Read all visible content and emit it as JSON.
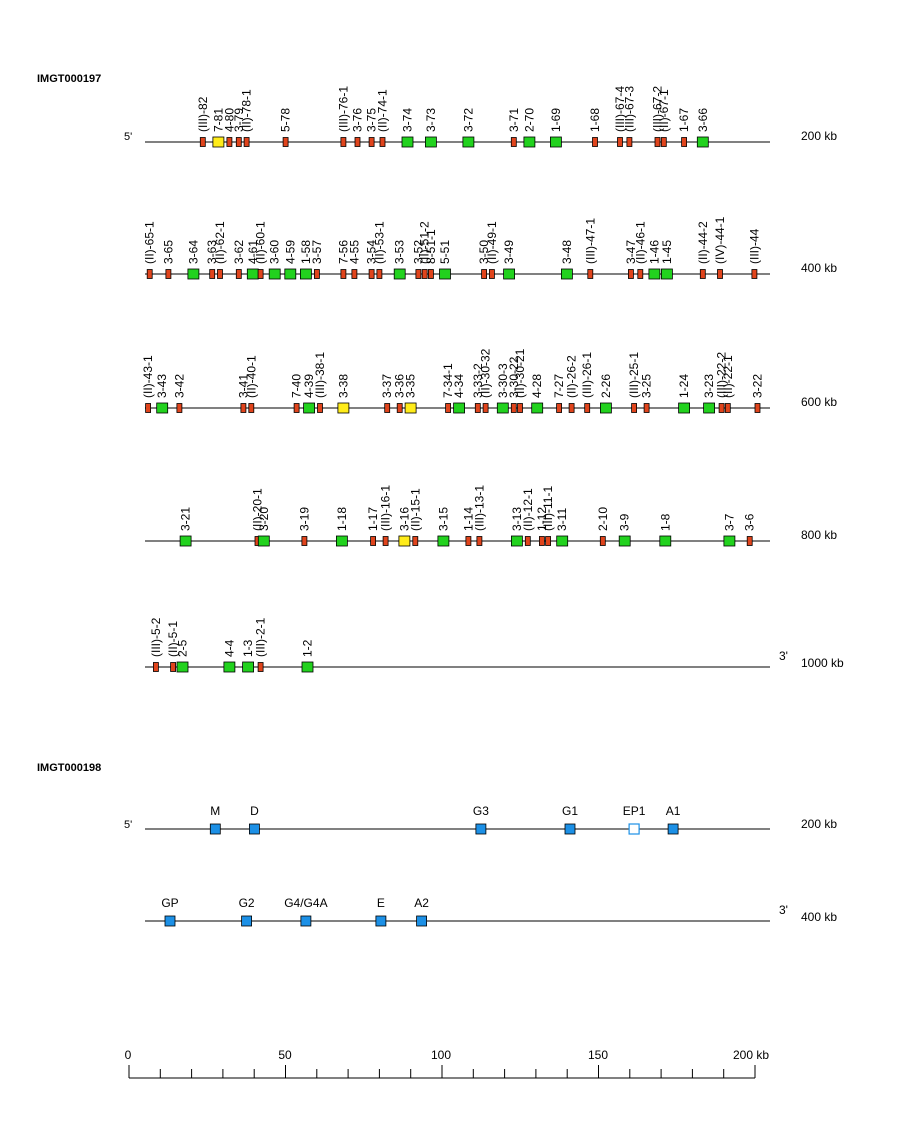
{
  "colors": {
    "line": "#000000",
    "red": "#e0441c",
    "green": "#22d21e",
    "yellow": "#ffec1a",
    "blue": "#1c90e6",
    "hollow_stroke": "#1c90e6",
    "text": "#000000"
  },
  "locus1": {
    "id": "IMGT000197",
    "rows": [
      {
        "left_label": "5'",
        "right_label": "200 kb",
        "genes": [
          {
            "name": "(III)-82",
            "kb": 18.5,
            "type": "red"
          },
          {
            "name": "7-81",
            "kb": 23.5,
            "type": "yellow"
          },
          {
            "name": "4-80",
            "kb": 27.0,
            "type": "red"
          },
          {
            "name": "3-79",
            "kb": 30.0,
            "type": "red"
          },
          {
            "name": "(II)-78-1",
            "kb": 32.5,
            "type": "red"
          },
          {
            "name": "5-78",
            "kb": 45.0,
            "type": "red"
          },
          {
            "name": "(III)-76-1",
            "kb": 63.5,
            "type": "red"
          },
          {
            "name": "3-76",
            "kb": 68.0,
            "type": "red"
          },
          {
            "name": "3-75",
            "kb": 72.5,
            "type": "red"
          },
          {
            "name": "(II)-74-1",
            "kb": 76.0,
            "type": "red"
          },
          {
            "name": "3-74",
            "kb": 84.0,
            "type": "green"
          },
          {
            "name": "3-73",
            "kb": 91.5,
            "type": "green"
          },
          {
            "name": "3-72",
            "kb": 103.5,
            "type": "green"
          },
          {
            "name": "3-71",
            "kb": 118.0,
            "type": "red"
          },
          {
            "name": "2-70",
            "kb": 123.0,
            "type": "green"
          },
          {
            "name": "1-69",
            "kb": 131.5,
            "type": "green"
          },
          {
            "name": "1-68",
            "kb": 144.0,
            "type": "red"
          },
          {
            "name": "(III)-67-4",
            "kb": 152.0,
            "type": "red"
          },
          {
            "name": "(III)-67-3",
            "kb": 155.0,
            "type": "red"
          },
          {
            "name": "(III)-67-2",
            "kb": 164.0,
            "type": "red"
          },
          {
            "name": "(II)-67-1",
            "kb": 166.0,
            "type": "red"
          },
          {
            "name": "1-67",
            "kb": 172.5,
            "type": "red"
          },
          {
            "name": "3-66",
            "kb": 178.5,
            "type": "green"
          }
        ]
      },
      {
        "left_label": "",
        "right_label": "400 kb",
        "genes": [
          {
            "name": "(II)-65-1",
            "kb": 1.5,
            "type": "red"
          },
          {
            "name": "3-65",
            "kb": 7.5,
            "type": "red"
          },
          {
            "name": "3-64",
            "kb": 15.5,
            "type": "green"
          },
          {
            "name": "3-63",
            "kb": 21.5,
            "type": "red"
          },
          {
            "name": "(II)-62-1",
            "kb": 24.0,
            "type": "red"
          },
          {
            "name": "3-62",
            "kb": 30.0,
            "type": "red"
          },
          {
            "name": "4-61",
            "kb": 34.5,
            "type": "green"
          },
          {
            "name": "(II)-60-1",
            "kb": 37.0,
            "type": "red"
          },
          {
            "name": "3-60",
            "kb": 41.5,
            "type": "green"
          },
          {
            "name": "4-59",
            "kb": 46.5,
            "type": "green"
          },
          {
            "name": "1-58",
            "kb": 51.5,
            "type": "green"
          },
          {
            "name": "3-57",
            "kb": 55.0,
            "type": "red"
          },
          {
            "name": "7-56",
            "kb": 63.5,
            "type": "red"
          },
          {
            "name": "4-55",
            "kb": 67.0,
            "type": "red"
          },
          {
            "name": "3-54",
            "kb": 72.5,
            "type": "red"
          },
          {
            "name": "(II)-53-1",
            "kb": 75.0,
            "type": "red"
          },
          {
            "name": "3-53",
            "kb": 81.5,
            "type": "green"
          },
          {
            "name": "3-52",
            "kb": 87.5,
            "type": "red"
          },
          {
            "name": "(II)-51-2",
            "kb": 89.5,
            "type": "red"
          },
          {
            "name": "8-51-1",
            "kb": 91.5,
            "type": "red"
          },
          {
            "name": "5-51",
            "kb": 96.0,
            "type": "green"
          },
          {
            "name": "3-50",
            "kb": 108.5,
            "type": "red"
          },
          {
            "name": "(II)-49-1",
            "kb": 111.0,
            "type": "red"
          },
          {
            "name": "3-49",
            "kb": 116.5,
            "type": "green"
          },
          {
            "name": "3-48",
            "kb": 135.0,
            "type": "green"
          },
          {
            "name": "(III)-47-1",
            "kb": 142.5,
            "type": "red"
          },
          {
            "name": "3-47",
            "kb": 155.5,
            "type": "red"
          },
          {
            "name": "(II)-46-1",
            "kb": 158.5,
            "type": "red"
          },
          {
            "name": "1-46",
            "kb": 163.0,
            "type": "green"
          },
          {
            "name": "1-45",
            "kb": 167.0,
            "type": "green"
          },
          {
            "name": "(II)-44-2",
            "kb": 178.5,
            "type": "red"
          },
          {
            "name": "(IV)-44-1",
            "kb": 184.0,
            "type": "red"
          },
          {
            "name": "(III)-44",
            "kb": 195.0,
            "type": "red"
          }
        ]
      },
      {
        "left_label": "",
        "right_label": "600 kb",
        "genes": [
          {
            "name": "(II)-43-1",
            "kb": 1.0,
            "type": "red"
          },
          {
            "name": "3-43",
            "kb": 5.5,
            "type": "green"
          },
          {
            "name": "3-42",
            "kb": 11.0,
            "type": "red"
          },
          {
            "name": "3-41",
            "kb": 31.5,
            "type": "red"
          },
          {
            "name": "(II)-40-1",
            "kb": 34.0,
            "type": "red"
          },
          {
            "name": "7-40",
            "kb": 48.5,
            "type": "red"
          },
          {
            "name": "4-39",
            "kb": 52.5,
            "type": "green"
          },
          {
            "name": "(III)-38-1",
            "kb": 56.0,
            "type": "red"
          },
          {
            "name": "3-38",
            "kb": 63.5,
            "type": "yellow"
          },
          {
            "name": "3-37",
            "kb": 77.5,
            "type": "red"
          },
          {
            "name": "3-36",
            "kb": 81.5,
            "type": "red"
          },
          {
            "name": "3-35",
            "kb": 85.0,
            "type": "yellow"
          },
          {
            "name": "7-34-1",
            "kb": 97.0,
            "type": "red"
          },
          {
            "name": "4-34",
            "kb": 100.5,
            "type": "green"
          },
          {
            "name": "3-33-2",
            "kb": 106.5,
            "type": "red"
          },
          {
            "name": "(II)-30-32",
            "kb": 109.0,
            "type": "red"
          },
          {
            "name": "3-30-3",
            "kb": 114.5,
            "type": "green"
          },
          {
            "name": "3-30-22",
            "kb": 118.0,
            "type": "red"
          },
          {
            "name": "(II)-30-21",
            "kb": 120.0,
            "type": "red"
          },
          {
            "name": "4-28",
            "kb": 125.5,
            "type": "green"
          },
          {
            "name": "7-27",
            "kb": 132.5,
            "type": "red"
          },
          {
            "name": "(II)-26-2",
            "kb": 136.5,
            "type": "red"
          },
          {
            "name": "(III)-26-1",
            "kb": 141.5,
            "type": "red"
          },
          {
            "name": "2-26",
            "kb": 147.5,
            "type": "green"
          },
          {
            "name": "(III)-25-1",
            "kb": 156.5,
            "type": "red"
          },
          {
            "name": "3-25",
            "kb": 160.5,
            "type": "red"
          },
          {
            "name": "1-24",
            "kb": 172.5,
            "type": "green"
          },
          {
            "name": "3-23",
            "kb": 180.5,
            "type": "green"
          },
          {
            "name": "(III)-22-2",
            "kb": 184.5,
            "type": "red"
          },
          {
            "name": "(II)-22-1",
            "kb": 186.5,
            "type": "red"
          },
          {
            "name": "3-22",
            "kb": 196.0,
            "type": "red"
          }
        ]
      },
      {
        "left_label": "",
        "right_label": "800 kb",
        "genes": [
          {
            "name": "3-21",
            "kb": 13.0,
            "type": "green"
          },
          {
            "name": "(II)-20-1",
            "kb": 36.0,
            "type": "red"
          },
          {
            "name": "3-20",
            "kb": 38.0,
            "type": "green"
          },
          {
            "name": "3-19",
            "kb": 51.0,
            "type": "red"
          },
          {
            "name": "1-18",
            "kb": 63.0,
            "type": "green"
          },
          {
            "name": "1-17",
            "kb": 73.0,
            "type": "red"
          },
          {
            "name": "(III)-16-1",
            "kb": 77.0,
            "type": "red"
          },
          {
            "name": "3-16",
            "kb": 83.0,
            "type": "yellow"
          },
          {
            "name": "(II)-15-1",
            "kb": 86.5,
            "type": "red"
          },
          {
            "name": "3-15",
            "kb": 95.5,
            "type": "green"
          },
          {
            "name": "1-14",
            "kb": 103.5,
            "type": "red"
          },
          {
            "name": "(III)-13-1",
            "kb": 107.0,
            "type": "red"
          },
          {
            "name": "3-13",
            "kb": 119.0,
            "type": "green"
          },
          {
            "name": "(II)-12-1",
            "kb": 122.5,
            "type": "red"
          },
          {
            "name": "1-12",
            "kb": 127.0,
            "type": "red"
          },
          {
            "name": "(III)-11-1",
            "kb": 129.0,
            "type": "red"
          },
          {
            "name": "3-11",
            "kb": 133.5,
            "type": "green"
          },
          {
            "name": "2-10",
            "kb": 146.5,
            "type": "red"
          },
          {
            "name": "3-9",
            "kb": 153.5,
            "type": "green"
          },
          {
            "name": "1-8",
            "kb": 166.5,
            "type": "green"
          },
          {
            "name": "3-7",
            "kb": 187.0,
            "type": "green"
          },
          {
            "name": "3-6",
            "kb": 193.5,
            "type": "red"
          }
        ]
      },
      {
        "left_label": "",
        "right_label": "1000 kb",
        "end_label": "3'",
        "genes": [
          {
            "name": "(III)-5-2",
            "kb": 3.5,
            "type": "red"
          },
          {
            "name": "(II)-5-1",
            "kb": 9.0,
            "type": "red"
          },
          {
            "name": "2-5",
            "kb": 12.0,
            "type": "green"
          },
          {
            "name": "4-4",
            "kb": 27.0,
            "type": "green"
          },
          {
            "name": "1-3",
            "kb": 33.0,
            "type": "green"
          },
          {
            "name": "(III)-2-1",
            "kb": 37.0,
            "type": "red"
          },
          {
            "name": "1-2",
            "kb": 52.0,
            "type": "green"
          }
        ]
      }
    ]
  },
  "locus2": {
    "id": "IMGT000198",
    "rows": [
      {
        "left_label": "5'",
        "right_label": "200 kb",
        "genes": [
          {
            "name": "M",
            "kb": 22.5,
            "type": "blue"
          },
          {
            "name": "D",
            "kb": 35.0,
            "type": "blue"
          },
          {
            "name": "G3",
            "kb": 107.5,
            "type": "blue"
          },
          {
            "name": "G1",
            "kb": 136.0,
            "type": "blue"
          },
          {
            "name": "EP1",
            "kb": 156.5,
            "type": "hollow"
          },
          {
            "name": "A1",
            "kb": 169.0,
            "type": "blue"
          }
        ]
      },
      {
        "left_label": "",
        "right_label": "400 kb",
        "end_label": "3'",
        "genes": [
          {
            "name": "GP",
            "kb": 8.0,
            "type": "blue"
          },
          {
            "name": "G2",
            "kb": 32.5,
            "type": "blue"
          },
          {
            "name": "G4/G4A",
            "kb": 51.5,
            "type": "blue"
          },
          {
            "name": "E",
            "kb": 75.5,
            "type": "blue"
          },
          {
            "name": "A2",
            "kb": 88.5,
            "type": "blue"
          }
        ]
      }
    ]
  },
  "scale": {
    "ticks": [
      "0",
      "50",
      "100",
      "150"
    ],
    "end_label": "200 kb"
  }
}
